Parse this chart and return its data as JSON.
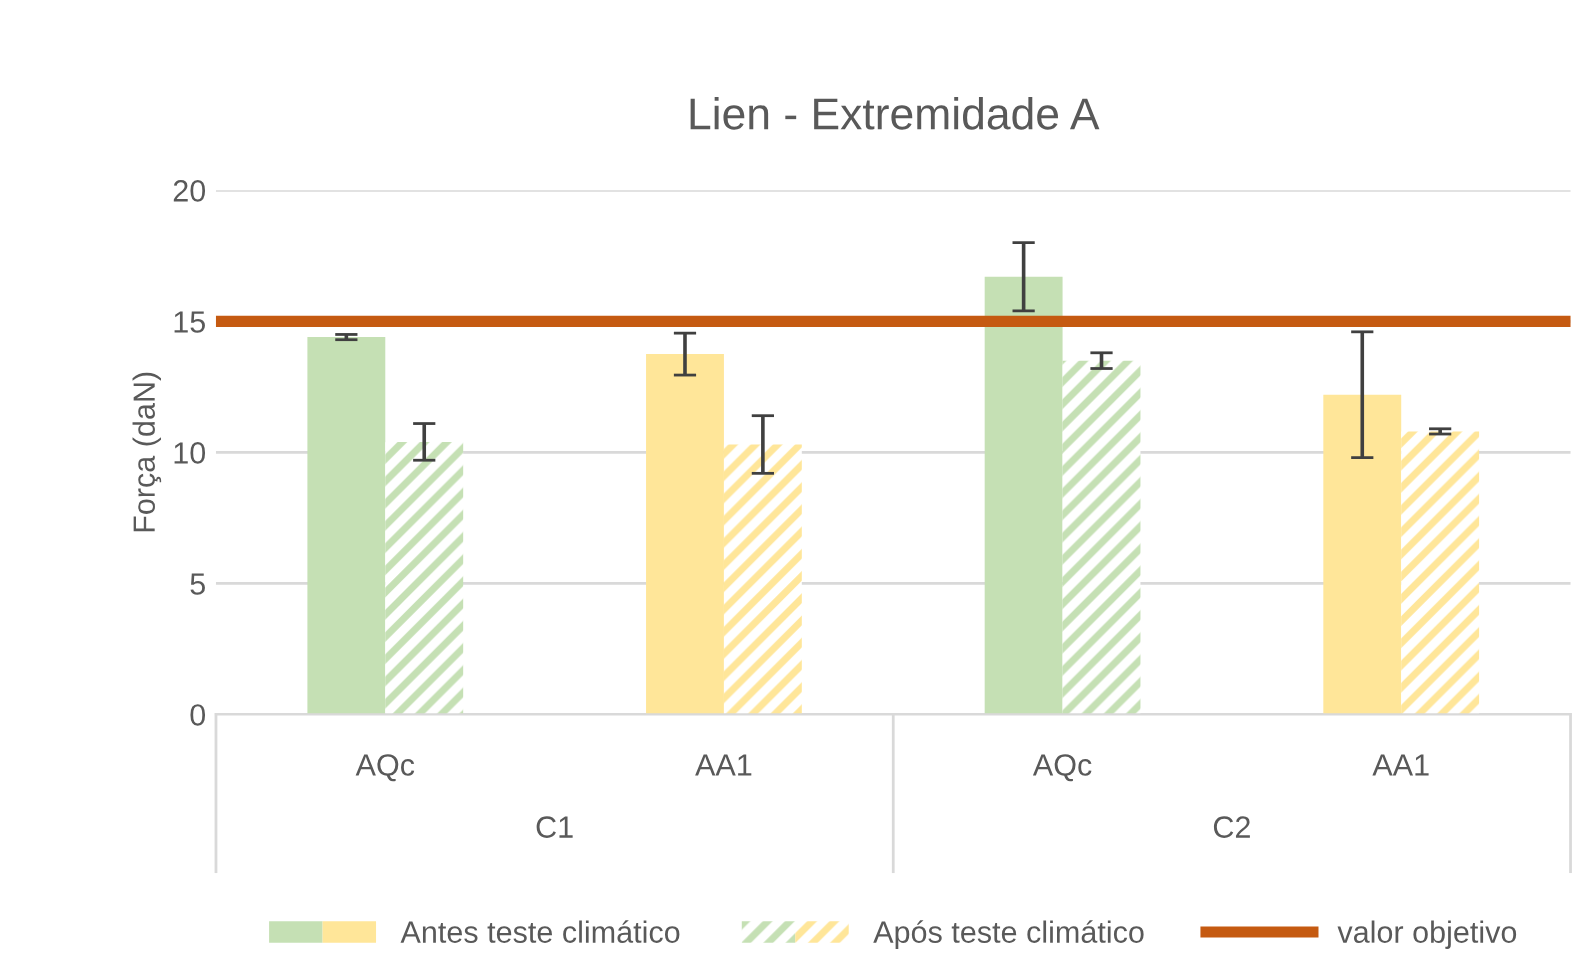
{
  "chart_data": {
    "type": "bar",
    "title": "Lien - Extremidade A",
    "ylabel": "Força (daN)",
    "categories": [
      "AQc",
      "AA1",
      "AQc",
      "AA1"
    ],
    "annotations": [
      "C1",
      "C2"
    ],
    "series": [
      {
        "name": "Antes teste climático",
        "colors": [
          "#c5e0b4",
          "#ffe699",
          "#c5e0b4",
          "#ffe699"
        ],
        "values": [
          14.4,
          13.75,
          16.7,
          12.2
        ],
        "errors": [
          0.1,
          0.8,
          1.3,
          2.4
        ]
      },
      {
        "name": "Após teste climático",
        "colors": [
          "#c5e0b4",
          "#ffe699",
          "#c5e0b4",
          "#ffe699"
        ],
        "values": [
          10.4,
          10.3,
          13.5,
          10.8
        ],
        "errors": [
          0.7,
          1.1,
          0.3,
          0.1
        ]
      }
    ],
    "ref_lines": [
      {
        "axis": "y",
        "value": 15,
        "label": "valor objetivo",
        "color": "#c55a11"
      }
    ],
    "ylim": [
      0,
      20
    ],
    "yticks": [
      0,
      5,
      10,
      15,
      20
    ],
    "grid": "y",
    "legend": "bottom"
  }
}
